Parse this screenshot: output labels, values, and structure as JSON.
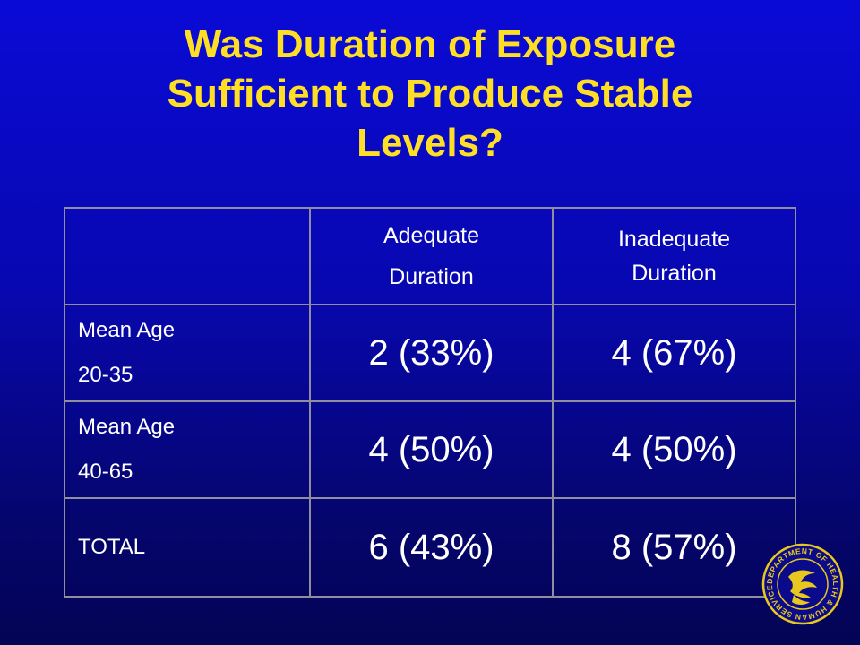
{
  "title": {
    "line1": "Was Duration of Exposure",
    "line2": "Sufficient to Produce Stable",
    "line3": "Levels?"
  },
  "table": {
    "headers": [
      {
        "line1": "Adequate",
        "line2": "Duration"
      },
      {
        "line1": "Inadequate",
        "line2": "Duration"
      }
    ],
    "rows": [
      {
        "label1": "Mean Age",
        "label2": "20-35",
        "adequate": "2 (33%)",
        "inadequate": "4 (67%)"
      },
      {
        "label1": "Mean Age",
        "label2": "40-65",
        "adequate": "4 (50%)",
        "inadequate": "4 (50%)"
      },
      {
        "label1": "TOTAL",
        "label2": "",
        "adequate": "6 (43%)",
        "inadequate": "8 (57%)"
      }
    ]
  },
  "seal": {
    "icon": "hhs-seal-icon",
    "text": "DEPARTMENT OF HEALTH & HUMAN SERVICES USA"
  },
  "colors": {
    "background_top": "#0a0ad6",
    "background_bottom": "#040455",
    "title": "#ffde26",
    "table_text": "#ffffff",
    "grid_line": "#8e8e9c"
  }
}
